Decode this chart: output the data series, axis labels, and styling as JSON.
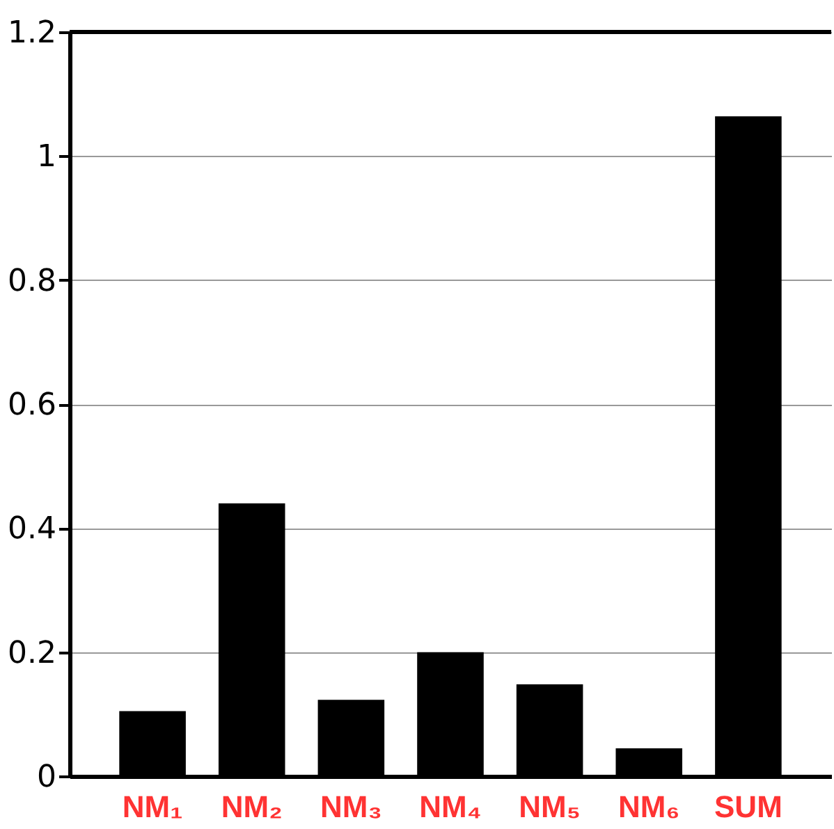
{
  "chart_data": {
    "type": "bar",
    "categories": [
      "NM₁",
      "NM₂",
      "NM₃",
      "NM₄",
      "NM₅",
      "NM₆",
      "SUM"
    ],
    "values": [
      0.105,
      0.44,
      0.123,
      0.2,
      0.148,
      0.045,
      1.064
    ],
    "color": "#000000",
    "ylim": [
      0,
      1.2
    ],
    "yticks": [
      0,
      0.2,
      0.4,
      0.6,
      0.8,
      1,
      1.2
    ],
    "grid": "y"
  }
}
